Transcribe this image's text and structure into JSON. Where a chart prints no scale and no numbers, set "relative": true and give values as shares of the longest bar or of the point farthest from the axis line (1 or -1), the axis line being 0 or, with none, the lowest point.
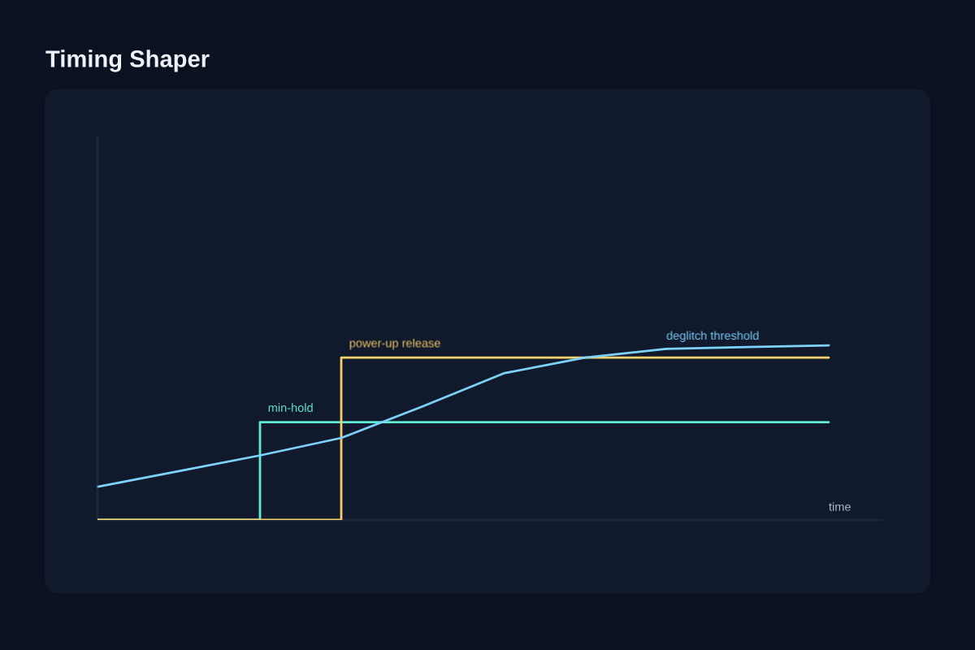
{
  "chart_data": {
    "type": "line",
    "title": "Timing Shaper",
    "xlabel": "time",
    "relative": true,
    "categories": [
      null,
      null,
      null,
      null,
      null,
      null,
      null,
      null,
      null,
      null
    ],
    "series": [
      {
        "name": "min-hold",
        "type": "step",
        "color": "#5eead4",
        "values": [
          0,
          0,
          0.56,
          0.56,
          0.56,
          0.56,
          0.56,
          0.56,
          0.56,
          0.56
        ]
      },
      {
        "name": "power-up release",
        "type": "step",
        "color": "#f9cf6a",
        "values": [
          0,
          0,
          0,
          0.93,
          0.93,
          0.93,
          0.93,
          0.93,
          0.93,
          0.93
        ]
      },
      {
        "name": "deglitch threshold",
        "color": "#7dd3fc",
        "values": [
          0.19,
          0.28,
          0.37,
          0.47,
          0.65,
          0.84,
          0.93,
          0.98,
          0.99,
          1
        ]
      }
    ]
  }
}
